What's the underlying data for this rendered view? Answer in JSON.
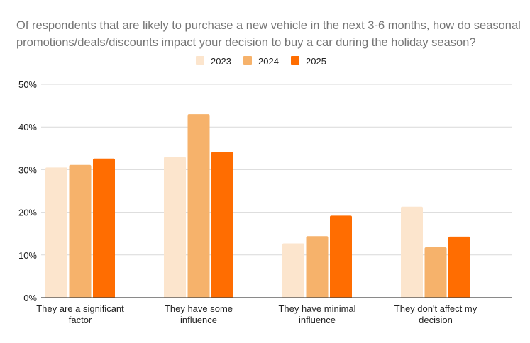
{
  "chart_data": {
    "type": "bar",
    "title": "Of respondents that are likely to purchase a new vehicle in the next 3-6 months, how do seasonal promotions/deals/discounts impact your decision to buy a car during the holiday season?",
    "title_lines": [
      "Of respondents that are likely to purchase a new vehicle in the next 3-6 months, how do seasonal",
      "promotions/deals/discounts impact your decision to buy a car during the holiday season?"
    ],
    "xlabel": "",
    "ylabel": "",
    "ylim": [
      0,
      50
    ],
    "yticks": [
      0,
      10,
      20,
      30,
      40,
      50
    ],
    "ytick_labels": [
      "0%",
      "10%",
      "20%",
      "30%",
      "40%",
      "50%"
    ],
    "grid": true,
    "legend_position": "top-center",
    "categories": [
      [
        "They are a significant",
        "factor"
      ],
      [
        "They have some",
        "influence"
      ],
      [
        "They have minimal",
        "influence"
      ],
      [
        "They don't affect my",
        "decision"
      ]
    ],
    "series": [
      {
        "name": "2023",
        "color": "#FCE5CD",
        "values": [
          30.5,
          33.0,
          12.7,
          21.3
        ]
      },
      {
        "name": "2024",
        "color": "#F6B26B",
        "values": [
          31.1,
          43.0,
          14.4,
          11.8
        ]
      },
      {
        "name": "2025",
        "color": "#FF6D01",
        "values": [
          32.6,
          34.2,
          19.2,
          14.3
        ]
      }
    ]
  }
}
